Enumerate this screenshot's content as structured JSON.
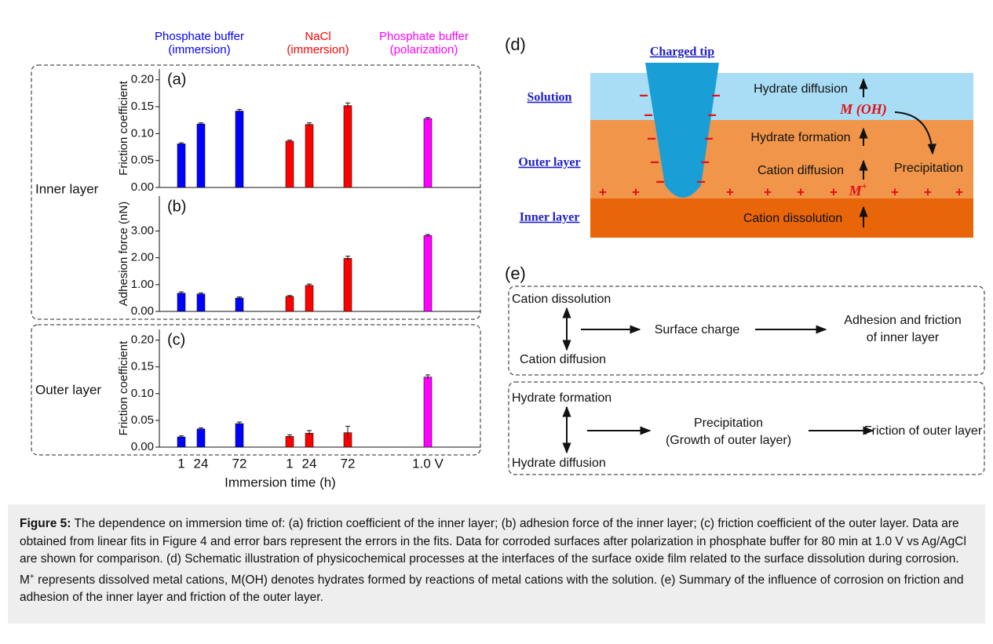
{
  "group_labels": [
    {
      "line1": "Phosphate buffer",
      "line2": "(immersion)"
    },
    {
      "line1": "NaCl",
      "line2": "(immersion)"
    },
    {
      "line1": "Phosphate buffer",
      "line2": "(polarization)"
    }
  ],
  "layer_labels": [
    "Inner layer",
    "Outer layer"
  ],
  "chart_data": [
    {
      "type": "bar",
      "title": "(a)",
      "ylabel": "Friction coefficient",
      "ylim": [
        0,
        0.22
      ],
      "yticks": [
        {
          "value": 0,
          "label": "0.00"
        },
        {
          "value": 0.05,
          "label": "0.05"
        },
        {
          "value": 0.1,
          "label": "0.10"
        },
        {
          "value": 0.15,
          "label": "0.15"
        },
        {
          "value": 0.2,
          "label": "0.20"
        }
      ],
      "series": [
        {
          "color": "#0000ff",
          "values": [
            0.081,
            0.118,
            0.142,
            null,
            null,
            null,
            null
          ],
          "errors": [
            0.002,
            0.002,
            0.003,
            null,
            null,
            null,
            null
          ]
        },
        {
          "color": "#ff0000",
          "values": [
            null,
            null,
            null,
            0.086,
            0.117,
            0.152,
            null
          ],
          "errors": [
            null,
            null,
            null,
            0.002,
            0.003,
            0.005,
            null
          ]
        },
        {
          "color": "#ff00ff",
          "values": [
            null,
            null,
            null,
            null,
            null,
            null,
            0.128
          ],
          "errors": [
            null,
            null,
            null,
            null,
            null,
            null,
            0.002
          ]
        }
      ]
    },
    {
      "type": "bar",
      "title": "(b)",
      "ylabel": "Adhesion force (nN)",
      "ylim": [
        0,
        4.3
      ],
      "yticks": [
        {
          "value": 0,
          "label": "0.00"
        },
        {
          "value": 1,
          "label": "1.00"
        },
        {
          "value": 2,
          "label": "2.00"
        },
        {
          "value": 3,
          "label": "3.00"
        }
      ],
      "series": [
        {
          "color": "#0000ff",
          "values": [
            0.68,
            0.65,
            0.5,
            null,
            null,
            null,
            null
          ],
          "errors": [
            0.05,
            0.04,
            0.04,
            null,
            null,
            null,
            null
          ]
        },
        {
          "color": "#ff0000",
          "values": [
            null,
            null,
            null,
            0.56,
            0.97,
            1.98,
            null
          ],
          "errors": [
            null,
            null,
            null,
            0.03,
            0.05,
            0.08,
            null
          ]
        },
        {
          "color": "#ff00ff",
          "values": [
            null,
            null,
            null,
            null,
            null,
            null,
            2.83
          ],
          "errors": [
            null,
            null,
            null,
            null,
            null,
            null,
            0.04
          ]
        }
      ]
    },
    {
      "type": "bar",
      "title": "(c)",
      "ylabel": "Friction coefficient",
      "xlabel": "Immersion time (h)",
      "ylim": [
        0,
        0.22
      ],
      "categories": [
        "1",
        "24",
        "72",
        "1",
        "24",
        "72",
        "1.0 V"
      ],
      "yticks": [
        {
          "value": 0,
          "label": "0.00"
        },
        {
          "value": 0.05,
          "label": "0.05"
        },
        {
          "value": 0.1,
          "label": "0.10"
        },
        {
          "value": 0.15,
          "label": "0.15"
        },
        {
          "value": 0.2,
          "label": "0.20"
        }
      ],
      "series": [
        {
          "color": "#0000ff",
          "values": [
            0.019,
            0.034,
            0.044,
            null,
            null,
            null,
            null
          ],
          "errors": [
            0.002,
            0.002,
            0.003,
            null,
            null,
            null,
            null
          ]
        },
        {
          "color": "#ff0000",
          "values": [
            null,
            null,
            null,
            0.02,
            0.026,
            0.027,
            null
          ],
          "errors": [
            null,
            null,
            null,
            0.003,
            0.005,
            0.012,
            null
          ]
        },
        {
          "color": "#ff00ff",
          "values": [
            null,
            null,
            null,
            null,
            null,
            null,
            0.131
          ],
          "errors": [
            null,
            null,
            null,
            null,
            null,
            null,
            0.004
          ]
        }
      ]
    }
  ],
  "diagram_d": {
    "label": "(d)",
    "tip": "Charged tip",
    "layers": [
      "Solution",
      "Outer layer",
      "Inner layer"
    ],
    "processes": [
      "Hydrate diffusion",
      "Hydrate formation",
      "Cation diffusion",
      "Cation dissolution"
    ],
    "hydrate": "M (OH)",
    "precipitation": "Precipitation",
    "cation": {
      "base": "M",
      "sup": "+"
    },
    "minus": "−",
    "plus": "+"
  },
  "diagram_e": {
    "label": "(e)",
    "box1": {
      "top": "Cation dissolution",
      "bottom": "Cation diffusion",
      "middle": "Surface charge",
      "result": [
        "Adhesion and friction",
        "of inner layer"
      ]
    },
    "box2": {
      "top": "Hydrate formation",
      "bottom": "Hydrate diffusion",
      "middle": [
        "Precipitation",
        "(Growth of outer layer)"
      ],
      "result": "Friction of outer layer"
    }
  },
  "caption": {
    "label": "Figure 5:",
    "text1": " The dependence on immersion time of: (a) friction coefficient of the inner layer; (b) adhesion force of the inner layer; (c) friction coefficient of the outer layer. Data are obtained from linear fits in Figure 4 and error bars represent the errors in the fits. Data for corroded surfaces after polarization in phosphate buffer for 80 min at 1.0 V vs Ag/AgCl are shown for comparison. (d) Schematic illustration of physicochemical processes at the interfaces of the surface oxide film related to the surface dissolution during corrosion. ",
    "sym": "M",
    "sup": "+",
    "text2": " represents dissolved metal cations, M(OH) denotes hydrates formed by reactions of metal cations with the solution. (e) Summary of the influence of corrosion on friction and adhesion of the inner layer and friction of the outer layer."
  }
}
